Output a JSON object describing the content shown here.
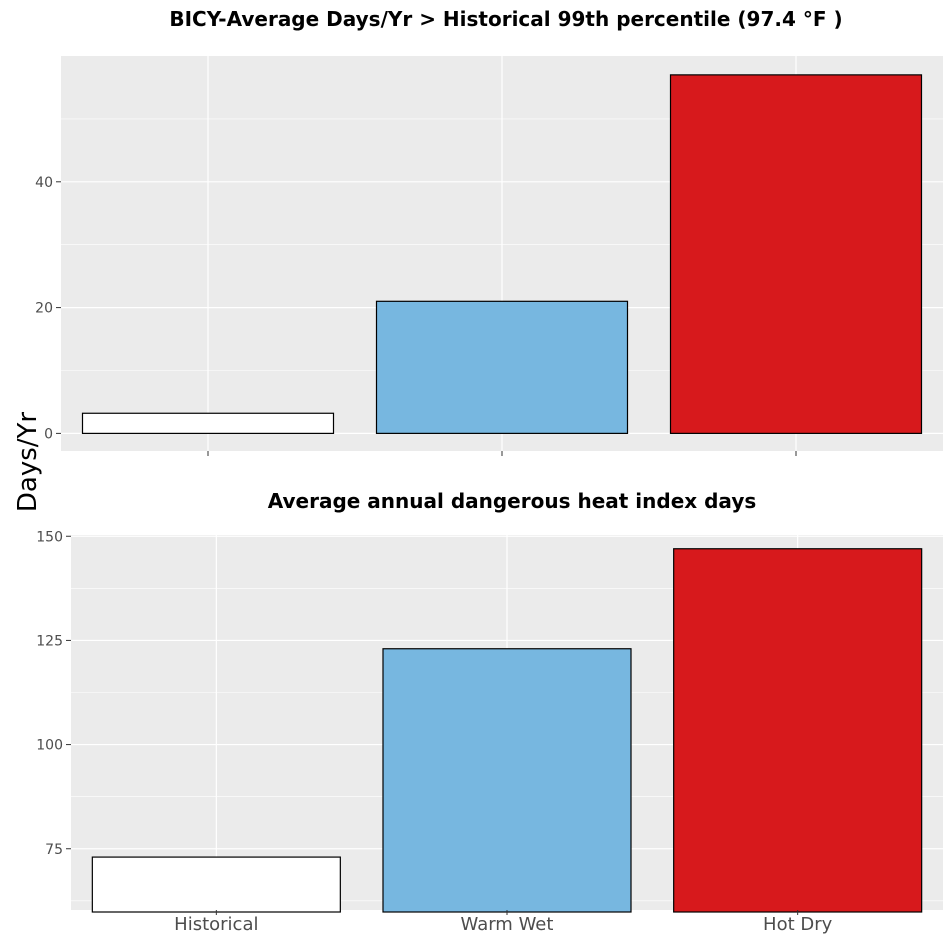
{
  "shared_ylabel": "Days/Yr",
  "chart_data": [
    {
      "type": "bar",
      "title": "BICY-Average Days/Yr > Historical 99th percentile (97.4 °F )",
      "categories": [
        "Historical",
        "Warm Wet",
        "Hot Dry"
      ],
      "values": [
        3.2,
        21,
        57
      ],
      "colors": [
        "#ffffff",
        "#77b7e0",
        "#d7191c"
      ],
      "ylim": [
        -2.8,
        60
      ],
      "yticks": [
        0,
        20,
        40
      ],
      "ytick_labels": [
        "0",
        "20",
        "40"
      ],
      "show_x_tick_labels": false,
      "grid": true
    },
    {
      "type": "bar",
      "title": "Average annual dangerous heat index days",
      "categories": [
        "Historical",
        "Warm Wet",
        "Hot Dry"
      ],
      "values": [
        73,
        123,
        147
      ],
      "colors": [
        "#ffffff",
        "#77b7e0",
        "#d7191c"
      ],
      "ylim": [
        60.3,
        150.3
      ],
      "yticks": [
        75,
        100,
        125,
        150
      ],
      "ytick_labels": [
        "75",
        "100",
        "125",
        "150"
      ],
      "show_x_tick_labels": true,
      "grid": true
    }
  ]
}
